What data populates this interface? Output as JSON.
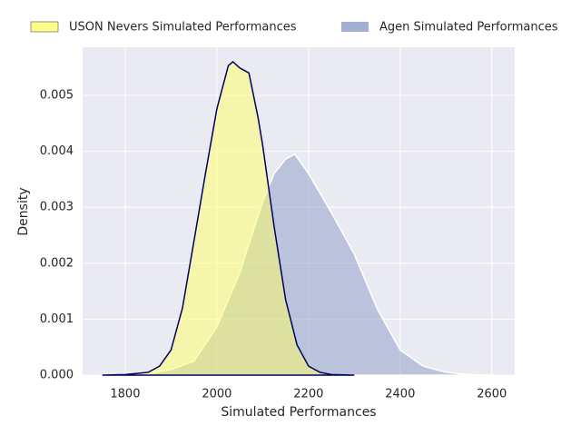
{
  "chart_data": {
    "type": "area",
    "x_label": "Simulated Performances",
    "y_label": "Density",
    "xlim": [
      1707,
      2650
    ],
    "ylim": [
      0,
      0.00586
    ],
    "xticks": [
      1800,
      2000,
      2200,
      2400,
      2600
    ],
    "yticks": [
      {
        "value": 0,
        "label": "0.000"
      },
      {
        "value": 0.001,
        "label": "0.001"
      },
      {
        "value": 0.002,
        "label": "0.002"
      },
      {
        "value": 0.003,
        "label": "0.003"
      },
      {
        "value": 0.004,
        "label": "0.004"
      },
      {
        "value": 0.005,
        "label": "0.005"
      }
    ],
    "grid": true,
    "legend": "top",
    "series": [
      {
        "name": "USON Nevers Simulated Performances",
        "color": "#ffff66",
        "line_color": "#00005e",
        "x": [
          1750,
          1800,
          1850,
          1875,
          1900,
          1925,
          1950,
          1975,
          2000,
          2025,
          2035,
          2050,
          2070,
          2090,
          2100,
          2125,
          2150,
          2175,
          2200,
          2225,
          2250,
          2300
        ],
        "values": [
          0,
          1e-05,
          5e-05,
          0.00016,
          0.00045,
          0.0012,
          0.0024,
          0.0036,
          0.00476,
          0.00553,
          0.0056,
          0.00549,
          0.0054,
          0.0046,
          0.0041,
          0.00265,
          0.00135,
          0.00054,
          0.00016,
          5e-05,
          1e-05,
          0
        ]
      },
      {
        "name": "Agen Simulated Performances",
        "color": "#8a9cc4",
        "line_color": "#ffffff",
        "x": [
          1750,
          1850,
          1900,
          1950,
          2000,
          2050,
          2100,
          2125,
          2150,
          2170,
          2200,
          2250,
          2300,
          2350,
          2400,
          2450,
          2500,
          2550,
          2600
        ],
        "values": [
          0,
          2e-05,
          0.0001,
          0.00025,
          0.00086,
          0.00183,
          0.0031,
          0.0036,
          0.00386,
          0.00395,
          0.0036,
          0.0029,
          0.00216,
          0.00118,
          0.00045,
          0.00016,
          5e-05,
          1e-05,
          0
        ]
      }
    ]
  }
}
